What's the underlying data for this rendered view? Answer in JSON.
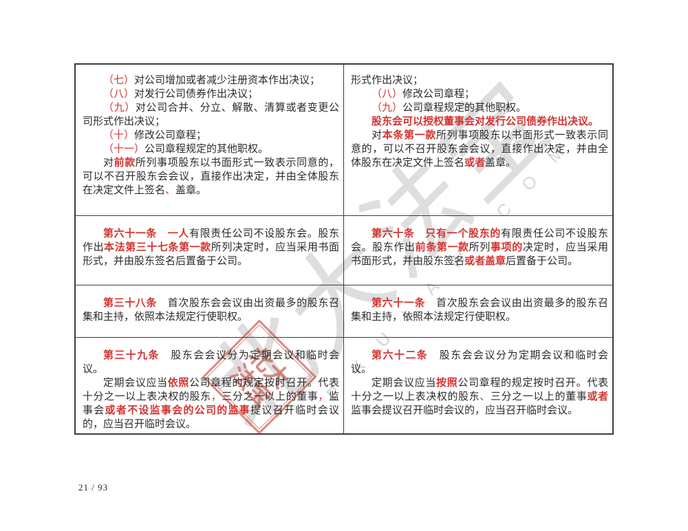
{
  "page": {
    "page_number": "21 / 93"
  },
  "colors": {
    "diff_red": "#d23430",
    "body_text": "#2b2b2b",
    "table_border": "#3c3c3c",
    "seal_red": "#c96055"
  },
  "watermark": {
    "cn_text": "北大法宝",
    "latin_text": "PKULAW.COM",
    "seal_text": "北大法宝"
  },
  "table": {
    "rows": [
      {
        "left": {
          "paragraphs": [
            {
              "indent": true,
              "runs": [
                {
                  "t": "（七）",
                  "red": true
                },
                {
                  "t": "对公司增加或者减少注册资本作出决议；"
                }
              ]
            },
            {
              "indent": true,
              "runs": [
                {
                  "t": "（八）",
                  "red": true
                },
                {
                  "t": "对发行公司债券作出决议；"
                }
              ]
            },
            {
              "indent": true,
              "runs": [
                {
                  "t": "（九）",
                  "red": true
                },
                {
                  "t": "对公司合并、分立、解散、清算或者变更公司形式作出决议；"
                }
              ]
            },
            {
              "indent": true,
              "runs": [
                {
                  "t": "（十）",
                  "red": true
                },
                {
                  "t": "修改公司章程；"
                }
              ]
            },
            {
              "indent": true,
              "runs": [
                {
                  "t": "（十一）",
                  "red": true
                },
                {
                  "t": "公司章程规定的其他职权。"
                }
              ]
            },
            {
              "indent": true,
              "runs": [
                {
                  "t": "对"
                },
                {
                  "t": "前款",
                  "red": true,
                  "bold": true
                },
                {
                  "t": "所列事项股东以书面形式一致表示同意的，可以不召开股东会会议，直接作出决定，并由全体股东在决定文件上签名"
                },
                {
                  "t": "、",
                  "red": true
                },
                {
                  "t": "盖章。"
                }
              ]
            }
          ]
        },
        "right": {
          "paragraphs": [
            {
              "indent": false,
              "runs": [
                {
                  "t": "形式作出决议；"
                }
              ]
            },
            {
              "indent": true,
              "runs": [
                {
                  "t": "（八）",
                  "red": true
                },
                {
                  "t": "修改公司章程；"
                }
              ]
            },
            {
              "indent": true,
              "runs": [
                {
                  "t": "（九）",
                  "red": true
                },
                {
                  "t": "公司章程规定的其他职权。"
                }
              ]
            },
            {
              "indent": true,
              "runs": [
                {
                  "t": "股东会可以授权董事会对发行公司债券作出决议。",
                  "red": true,
                  "bold": true
                }
              ]
            },
            {
              "indent": true,
              "runs": [
                {
                  "t": "对"
                },
                {
                  "t": "本条第一款",
                  "red": true,
                  "bold": true
                },
                {
                  "t": "所列事项股东以书面形式一致表示同意的，可以不召开股东会会议，直接作出决定，并由全体股东在决定文件上签名"
                },
                {
                  "t": "或者",
                  "red": true,
                  "bold": true
                },
                {
                  "t": "盖章。"
                }
              ]
            }
          ]
        }
      },
      {
        "left": {
          "paragraphs": [
            {
              "indent": true,
              "runs": [
                {
                  "t": "第六十一条",
                  "red": true,
                  "bold": true
                },
                {
                  "t": "　"
                },
                {
                  "t": "一人",
                  "red": true,
                  "bold": true
                },
                {
                  "t": "有限责任公司不设股东会。股东作出"
                },
                {
                  "t": "本法第三十七条第一款",
                  "red": true,
                  "bold": true
                },
                {
                  "t": "所列决定时，应当采用书面形式，并由股东签名后置备于公司。"
                }
              ]
            }
          ]
        },
        "right": {
          "paragraphs": [
            {
              "indent": true,
              "runs": [
                {
                  "t": "第六十条",
                  "red": true,
                  "bold": true
                },
                {
                  "t": "　"
                },
                {
                  "t": "只有一个股东的",
                  "red": true,
                  "bold": true
                },
                {
                  "t": "有限责任公司不设股东会。股东作出"
                },
                {
                  "t": "前条第一款",
                  "red": true,
                  "bold": true
                },
                {
                  "t": "所列"
                },
                {
                  "t": "事项的",
                  "red": true,
                  "bold": true
                },
                {
                  "t": "决定时，应当采用书面形式，并由股东签名"
                },
                {
                  "t": "或者盖章",
                  "red": true,
                  "bold": true
                },
                {
                  "t": "后置备于公司。"
                }
              ]
            }
          ]
        }
      },
      {
        "left": {
          "paragraphs": [
            {
              "indent": true,
              "runs": [
                {
                  "t": "第三十八条",
                  "red": true,
                  "bold": true
                },
                {
                  "t": "　首次股东会会议由出资最多的股东召集和主持，依照本法规定行使职权。"
                }
              ]
            }
          ]
        },
        "right": {
          "paragraphs": [
            {
              "indent": true,
              "runs": [
                {
                  "t": "第六十一条",
                  "red": true,
                  "bold": true
                },
                {
                  "t": "　首次股东会会议由出资最多的股东召集和主持，依照本法规定行使职权。"
                }
              ]
            }
          ]
        }
      },
      {
        "left": {
          "paragraphs": [
            {
              "indent": true,
              "runs": [
                {
                  "t": "第三十九条",
                  "red": true,
                  "bold": true
                },
                {
                  "t": "　股东会会议分为定期会议和临时会议。"
                }
              ]
            },
            {
              "indent": true,
              "runs": [
                {
                  "t": "定期会议应当"
                },
                {
                  "t": "依照",
                  "red": true,
                  "bold": true
                },
                {
                  "t": "公司章程的规定按时召开。代表十分之一以上表决权的股东"
                },
                {
                  "t": "，",
                  "red": true
                },
                {
                  "t": "三分之一以上的董事"
                },
                {
                  "t": "，",
                  "red": true
                },
                {
                  "t": "监事会"
                },
                {
                  "t": "或者不设监事会的公司的监事",
                  "red": true,
                  "bold": true
                },
                {
                  "t": "提议召开临时会议的，应当召开临时会议。"
                }
              ]
            }
          ]
        },
        "right": {
          "paragraphs": [
            {
              "indent": true,
              "runs": [
                {
                  "t": "第六十二条",
                  "red": true,
                  "bold": true
                },
                {
                  "t": "　股东会会议分为定期会议和临时会议。"
                }
              ]
            },
            {
              "indent": true,
              "runs": [
                {
                  "t": "定期会议应当"
                },
                {
                  "t": "按照",
                  "red": true,
                  "bold": true
                },
                {
                  "t": "公司章程的规定按时召开。代表十分之一以上表决权的股东"
                },
                {
                  "t": "、",
                  "red": true
                },
                {
                  "t": "三分之一以上的董事"
                },
                {
                  "t": "或者",
                  "red": true,
                  "bold": true
                },
                {
                  "t": "监事会提议召开临时会议的，应当召开临时会议。"
                }
              ]
            }
          ]
        }
      }
    ]
  }
}
